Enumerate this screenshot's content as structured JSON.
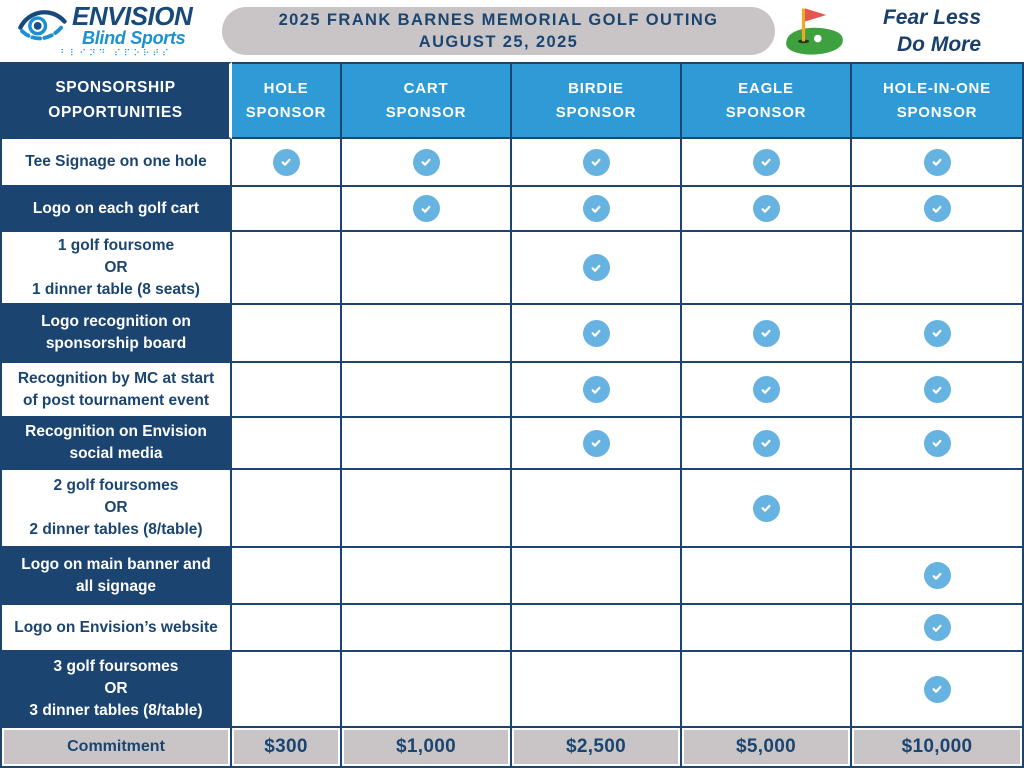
{
  "header": {
    "logo": {
      "name": "ENVISION",
      "subtitle": "Blind Sports",
      "braille": "⠃⠇⠊⠝⠙ ⠎⠏⠕⠗⠞⠎"
    },
    "title_line1": "2025 FRANK BARNES MEMORIAL GOLF OUTING",
    "title_line2": "AUGUST 25, 2025",
    "tagline_line1": "Fear Less",
    "tagline_line2": "Do More"
  },
  "table": {
    "corner_line1": "SPONSORSHIP",
    "corner_line2": "OPPORTUNITIES",
    "columns": [
      {
        "id": "hole",
        "lines": [
          "HOLE",
          "SPONSOR"
        ]
      },
      {
        "id": "cart",
        "lines": [
          "CART",
          "SPONSOR"
        ]
      },
      {
        "id": "birdie",
        "lines": [
          "BIRDIE",
          "SPONSOR"
        ]
      },
      {
        "id": "eagle",
        "lines": [
          "EAGLE",
          "SPONSOR"
        ]
      },
      {
        "id": "hole-in-one",
        "lines": [
          "HOLE-IN-ONE",
          "SPONSOR"
        ]
      }
    ],
    "rows": [
      {
        "label_lines": [
          "Tee Signage on one hole"
        ],
        "dark": false,
        "checks": [
          true,
          true,
          true,
          true,
          true
        ]
      },
      {
        "label_lines": [
          "Logo on each golf cart"
        ],
        "dark": true,
        "checks": [
          false,
          true,
          true,
          true,
          true
        ]
      },
      {
        "label_lines": [
          "1 golf foursome",
          "OR",
          "1 dinner table (8 seats)"
        ],
        "dark": false,
        "checks": [
          false,
          false,
          true,
          false,
          false
        ]
      },
      {
        "label_lines": [
          "Logo recognition on",
          "sponsorship board"
        ],
        "dark": true,
        "checks": [
          false,
          false,
          true,
          true,
          true
        ]
      },
      {
        "label_lines": [
          "Recognition by MC at start",
          "of post tournament event"
        ],
        "dark": false,
        "checks": [
          false,
          false,
          true,
          true,
          true
        ]
      },
      {
        "label_lines": [
          "Recognition on Envision",
          "social media"
        ],
        "dark": true,
        "checks": [
          false,
          false,
          true,
          true,
          true
        ]
      },
      {
        "label_lines": [
          "2 golf foursomes",
          "OR",
          "2 dinner tables (8/table)"
        ],
        "dark": false,
        "checks": [
          false,
          false,
          false,
          true,
          false
        ]
      },
      {
        "label_lines": [
          "Logo on main banner and",
          "all signage"
        ],
        "dark": true,
        "checks": [
          false,
          false,
          false,
          false,
          true
        ]
      },
      {
        "label_lines": [
          "Logo on Envision’s website"
        ],
        "dark": false,
        "checks": [
          false,
          false,
          false,
          false,
          true
        ]
      },
      {
        "label_lines": [
          "3 golf foursomes",
          "OR",
          "3 dinner tables (8/table)"
        ],
        "dark": true,
        "checks": [
          false,
          false,
          false,
          false,
          true
        ]
      }
    ],
    "footer": {
      "label": "Commitment",
      "values": [
        "$300",
        "$1,000",
        "$2,500",
        "$5,000",
        "$10,000"
      ]
    }
  },
  "colors": {
    "navy": "#1B4470",
    "navy_text": "#1B4571",
    "column_blue": "#2E9AD6",
    "check_blue": "#66B2E0",
    "gray": "#C9C5C6",
    "green": "#3FA03F",
    "flag_red": "#E4564E",
    "pole_yellow": "#F4A81D"
  }
}
